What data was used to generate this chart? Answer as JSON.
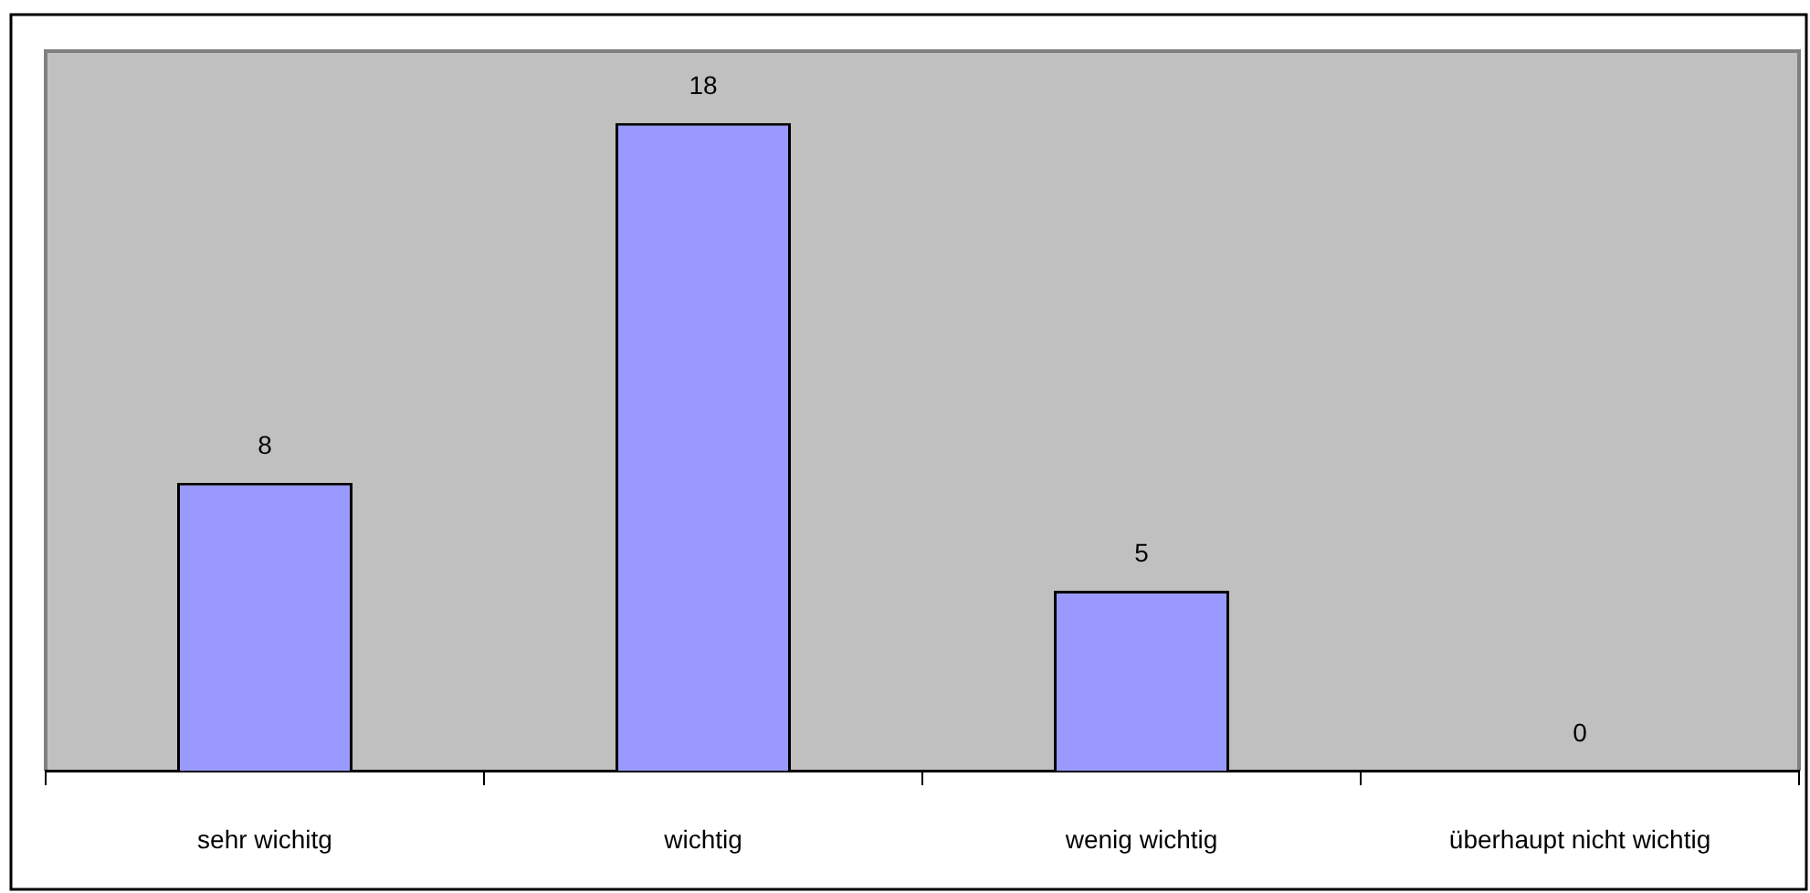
{
  "chart_data": {
    "type": "bar",
    "categories": [
      "sehr wichitg",
      "wichtig",
      "wenig wichtig",
      "überhaupt nicht wichtig"
    ],
    "values": [
      8,
      18,
      5,
      0
    ],
    "color": "#9999ff",
    "data_labels": true
  }
}
